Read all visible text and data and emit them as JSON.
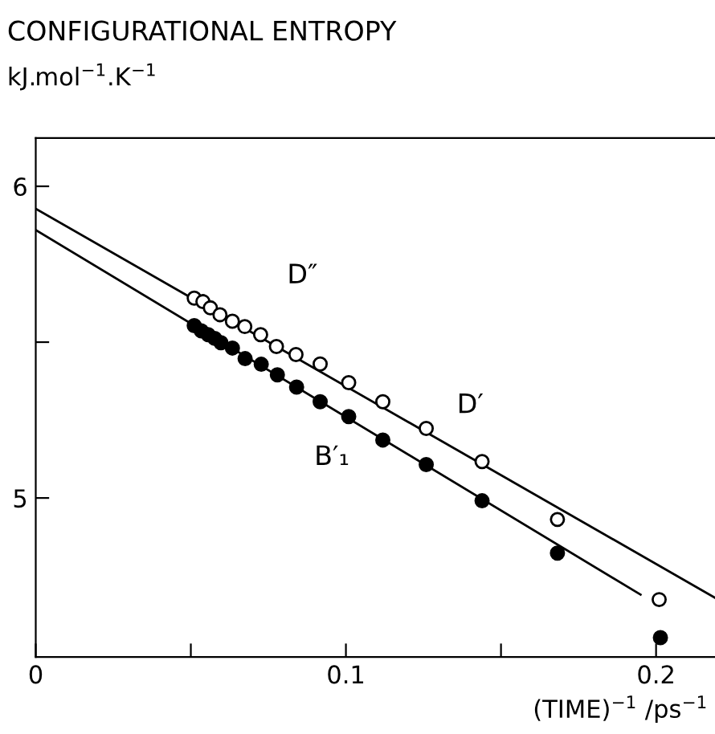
{
  "chart_data": {
    "type": "scatter",
    "title": "CONFIGURATIONAL ENTROPY",
    "ylabel": "kJ.mol$^{−1}$.K$^{−1}$",
    "xlabel": "(TIME)$^{−1}$ /ps$^{−1}$",
    "xlim": [
      0,
      0.219
    ],
    "ylim": [
      4.49,
      6.155
    ],
    "xticks": [
      0,
      {
        "value": 0.05,
        "label": null
      },
      0.1,
      {
        "value": 0.15,
        "label": null
      },
      0.2
    ],
    "yticks": [
      5,
      {
        "value": 5.5,
        "label": null
      },
      6
    ],
    "grid": false,
    "legend": false,
    "series": [
      {
        "marker": "circle",
        "color": "#ffffff",
        "x": [
          0.0511,
          0.0539,
          0.0563,
          0.0594,
          0.0634,
          0.0674,
          0.0725,
          0.0776,
          0.0839,
          0.0917,
          0.1009,
          0.1119,
          0.1259,
          0.1439,
          0.1682,
          0.201
        ],
        "values": [
          5.641,
          5.63,
          5.61,
          5.588,
          5.567,
          5.55,
          5.524,
          5.486,
          5.46,
          5.43,
          5.37,
          5.309,
          5.223,
          5.117,
          4.931,
          4.674
        ]
      },
      {
        "marker": "circle",
        "color": "#000000",
        "x": [
          0.0511,
          0.0534,
          0.0556,
          0.0577,
          0.0597,
          0.0634,
          0.0675,
          0.0727,
          0.0779,
          0.0841,
          0.0917,
          0.1009,
          0.1119,
          0.1259,
          0.1439,
          0.1682,
          0.2014
        ],
        "values": [
          5.553,
          5.536,
          5.524,
          5.512,
          5.498,
          5.481,
          5.447,
          5.429,
          5.395,
          5.356,
          5.309,
          5.261,
          5.186,
          5.107,
          4.991,
          4.823,
          4.552
        ]
      },
      {
        "type": "line",
        "marker": "none",
        "line_style": "solid",
        "color": "#000000",
        "x": [
          0,
          0.219
        ],
        "values": [
          5.928,
          4.68
        ]
      },
      {
        "type": "line",
        "marker": "none",
        "line_style": "solid",
        "color": "#000000",
        "x": [
          0,
          0.195
        ],
        "values": [
          5.86,
          4.69
        ]
      }
    ],
    "annotations": [
      "D″",
      "D′",
      "B′₁"
    ]
  }
}
